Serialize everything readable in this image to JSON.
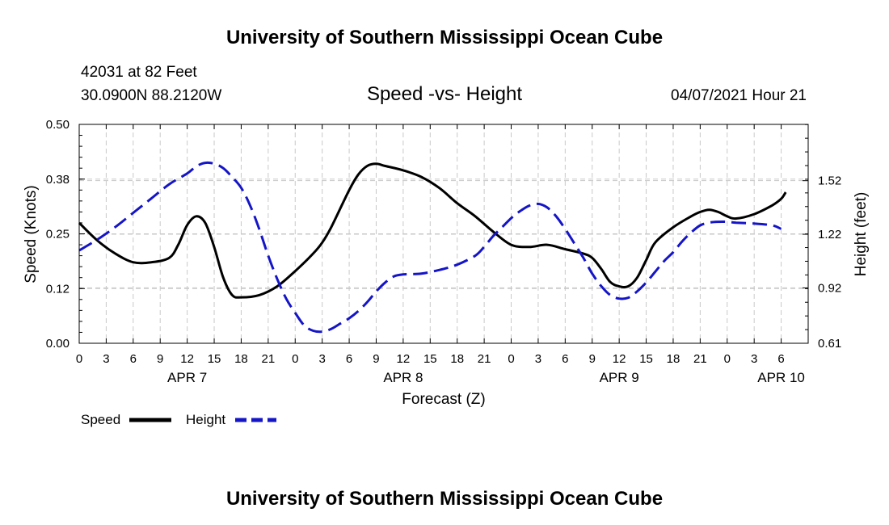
{
  "header": {
    "title": "University of Southern Mississippi Ocean Cube",
    "station": "42031 at 82 Feet",
    "coords": "30.0900N  88.2120W",
    "subtitle": "Speed -vs- Height",
    "datetime": "04/07/2021 Hour 21"
  },
  "footer": {
    "title": "University of Southern Mississippi Ocean Cube"
  },
  "colors": {
    "speed": "#000000",
    "height": "#1515c8"
  },
  "chart_data": {
    "type": "line",
    "title": "Speed -vs- Height",
    "xlabel": "Forecast (Z)",
    "ylabel": "Speed (Knots)",
    "y2label": "Height (feet)",
    "xlim_hours": [
      0,
      81
    ],
    "ylim": [
      0,
      0.5
    ],
    "y2lim": [
      0.61,
      1.835
    ],
    "grid": true,
    "x_ticks": [
      {
        "h": 0,
        "label": "0"
      },
      {
        "h": 3,
        "label": "3"
      },
      {
        "h": 6,
        "label": "6"
      },
      {
        "h": 9,
        "label": "9"
      },
      {
        "h": 12,
        "label": "12"
      },
      {
        "h": 15,
        "label": "15"
      },
      {
        "h": 18,
        "label": "18"
      },
      {
        "h": 21,
        "label": "21"
      },
      {
        "h": 24,
        "label": "0"
      },
      {
        "h": 27,
        "label": "3"
      },
      {
        "h": 30,
        "label": "6"
      },
      {
        "h": 33,
        "label": "9"
      },
      {
        "h": 36,
        "label": "12"
      },
      {
        "h": 39,
        "label": "15"
      },
      {
        "h": 42,
        "label": "18"
      },
      {
        "h": 45,
        "label": "21"
      },
      {
        "h": 48,
        "label": "0"
      },
      {
        "h": 51,
        "label": "3"
      },
      {
        "h": 54,
        "label": "6"
      },
      {
        "h": 57,
        "label": "9"
      },
      {
        "h": 60,
        "label": "12"
      },
      {
        "h": 63,
        "label": "15"
      },
      {
        "h": 66,
        "label": "18"
      },
      {
        "h": 69,
        "label": "21"
      },
      {
        "h": 72,
        "label": "0"
      },
      {
        "h": 75,
        "label": "3"
      },
      {
        "h": 78,
        "label": "6"
      }
    ],
    "date_labels": [
      {
        "h": 12,
        "label": "APR 7"
      },
      {
        "h": 36,
        "label": "APR 8"
      },
      {
        "h": 60,
        "label": "APR 9"
      },
      {
        "h": 78,
        "label": "APR 10"
      }
    ],
    "y_ticks": [
      {
        "v": 0.0,
        "label": "0.00"
      },
      {
        "v": 0.125,
        "label": "0.12"
      },
      {
        "v": 0.25,
        "label": "0.25"
      },
      {
        "v": 0.375,
        "label": "0.38"
      },
      {
        "v": 0.5,
        "label": "0.50"
      }
    ],
    "y2_ticks": [
      {
        "v": 0.61,
        "label": "0.61"
      },
      {
        "v": 0.92,
        "label": "0.92"
      },
      {
        "v": 1.22,
        "label": "1.22"
      },
      {
        "v": 1.52,
        "label": "1.52"
      }
    ],
    "series": [
      {
        "name": "Speed",
        "axis": "left",
        "style": "solid",
        "points": [
          [
            0,
            0.275
          ],
          [
            2,
            0.235
          ],
          [
            4,
            0.205
          ],
          [
            6,
            0.185
          ],
          [
            8,
            0.185
          ],
          [
            10,
            0.195
          ],
          [
            11,
            0.225
          ],
          [
            12,
            0.27
          ],
          [
            13,
            0.29
          ],
          [
            14,
            0.275
          ],
          [
            15,
            0.22
          ],
          [
            16,
            0.15
          ],
          [
            17,
            0.11
          ],
          [
            18,
            0.105
          ],
          [
            20,
            0.11
          ],
          [
            22,
            0.13
          ],
          [
            24,
            0.165
          ],
          [
            26,
            0.205
          ],
          [
            27,
            0.23
          ],
          [
            28,
            0.265
          ],
          [
            30,
            0.35
          ],
          [
            31,
            0.385
          ],
          [
            32,
            0.405
          ],
          [
            33,
            0.41
          ],
          [
            34,
            0.405
          ],
          [
            36,
            0.395
          ],
          [
            38,
            0.38
          ],
          [
            40,
            0.355
          ],
          [
            42,
            0.32
          ],
          [
            44,
            0.29
          ],
          [
            46,
            0.255
          ],
          [
            48,
            0.225
          ],
          [
            50,
            0.22
          ],
          [
            52,
            0.225
          ],
          [
            54,
            0.215
          ],
          [
            56,
            0.205
          ],
          [
            57,
            0.195
          ],
          [
            58,
            0.17
          ],
          [
            59,
            0.14
          ],
          [
            60,
            0.13
          ],
          [
            61,
            0.13
          ],
          [
            62,
            0.15
          ],
          [
            63,
            0.19
          ],
          [
            64,
            0.23
          ],
          [
            66,
            0.265
          ],
          [
            68,
            0.29
          ],
          [
            69,
            0.3
          ],
          [
            70,
            0.305
          ],
          [
            71,
            0.3
          ],
          [
            72,
            0.29
          ],
          [
            73,
            0.285
          ],
          [
            75,
            0.295
          ],
          [
            77,
            0.315
          ],
          [
            78,
            0.33
          ],
          [
            78.5,
            0.345
          ]
        ]
      },
      {
        "name": "Height",
        "axis": "right",
        "style": "dashed",
        "points": [
          [
            0,
            1.13
          ],
          [
            2,
            1.19
          ],
          [
            4,
            1.26
          ],
          [
            6,
            1.34
          ],
          [
            8,
            1.42
          ],
          [
            10,
            1.5
          ],
          [
            12,
            1.56
          ],
          [
            13,
            1.6
          ],
          [
            14,
            1.62
          ],
          [
            15,
            1.615
          ],
          [
            16,
            1.59
          ],
          [
            17,
            1.54
          ],
          [
            18,
            1.48
          ],
          [
            19,
            1.38
          ],
          [
            20,
            1.25
          ],
          [
            21,
            1.1
          ],
          [
            22,
            0.97
          ],
          [
            23,
            0.86
          ],
          [
            24,
            0.78
          ],
          [
            25,
            0.71
          ],
          [
            26,
            0.68
          ],
          [
            27,
            0.675
          ],
          [
            28,
            0.69
          ],
          [
            29,
            0.72
          ],
          [
            30,
            0.75
          ],
          [
            31,
            0.79
          ],
          [
            32,
            0.84
          ],
          [
            33,
            0.9
          ],
          [
            34,
            0.95
          ],
          [
            35,
            0.985
          ],
          [
            36,
            0.995
          ],
          [
            38,
            1.0
          ],
          [
            40,
            1.02
          ],
          [
            42,
            1.05
          ],
          [
            44,
            1.1
          ],
          [
            45,
            1.15
          ],
          [
            46,
            1.21
          ],
          [
            47,
            1.26
          ],
          [
            48,
            1.31
          ],
          [
            49,
            1.35
          ],
          [
            50,
            1.38
          ],
          [
            51,
            1.39
          ],
          [
            52,
            1.37
          ],
          [
            53,
            1.32
          ],
          [
            54,
            1.25
          ],
          [
            55,
            1.17
          ],
          [
            56,
            1.09
          ],
          [
            57,
            1.0
          ],
          [
            58,
            0.93
          ],
          [
            59,
            0.88
          ],
          [
            60,
            0.86
          ],
          [
            61,
            0.865
          ],
          [
            62,
            0.9
          ],
          [
            63,
            0.95
          ],
          [
            64,
            1.01
          ],
          [
            65,
            1.07
          ],
          [
            66,
            1.12
          ],
          [
            67,
            1.18
          ],
          [
            68,
            1.23
          ],
          [
            69,
            1.27
          ],
          [
            70,
            1.285
          ],
          [
            71,
            1.29
          ],
          [
            72,
            1.29
          ],
          [
            73,
            1.285
          ],
          [
            75,
            1.28
          ],
          [
            77,
            1.27
          ],
          [
            78,
            1.25
          ]
        ]
      }
    ],
    "legend": {
      "position": "bottom-left",
      "entries": [
        {
          "label": "Speed",
          "style": "solid"
        },
        {
          "label": "Height",
          "style": "dashed"
        }
      ]
    }
  }
}
